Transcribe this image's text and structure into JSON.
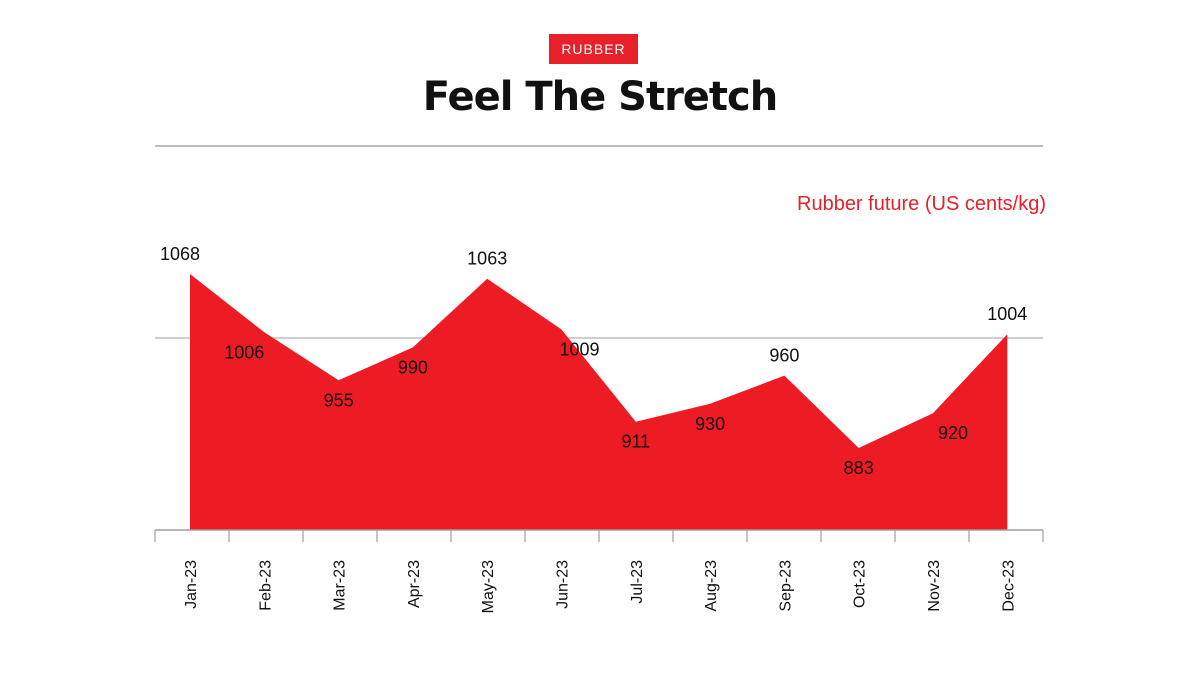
{
  "header": {
    "badge": "RUBBER",
    "title": "Feel The Stretch"
  },
  "chart_data": {
    "type": "area",
    "title": "Feel The Stretch",
    "ylabel": "Rubber future (US cents/kg)",
    "xlabel": "",
    "categories": [
      "Jan-23",
      "Feb-23",
      "Mar-23",
      "Apr-23",
      "May-23",
      "Jun-23",
      "Jul-23",
      "Aug-23",
      "Sep-23",
      "Oct-23",
      "Nov-23",
      "Dec-23"
    ],
    "values": [
      1068,
      1006,
      955,
      990,
      1063,
      1009,
      911,
      930,
      960,
      883,
      920,
      1004
    ],
    "ylim": [
      800,
      1100
    ],
    "gridlines": [
      1000
    ],
    "legend": "none",
    "colors": {
      "fill": "#ed1c24",
      "grid": "#bdbdbd",
      "text": "#111111"
    }
  }
}
